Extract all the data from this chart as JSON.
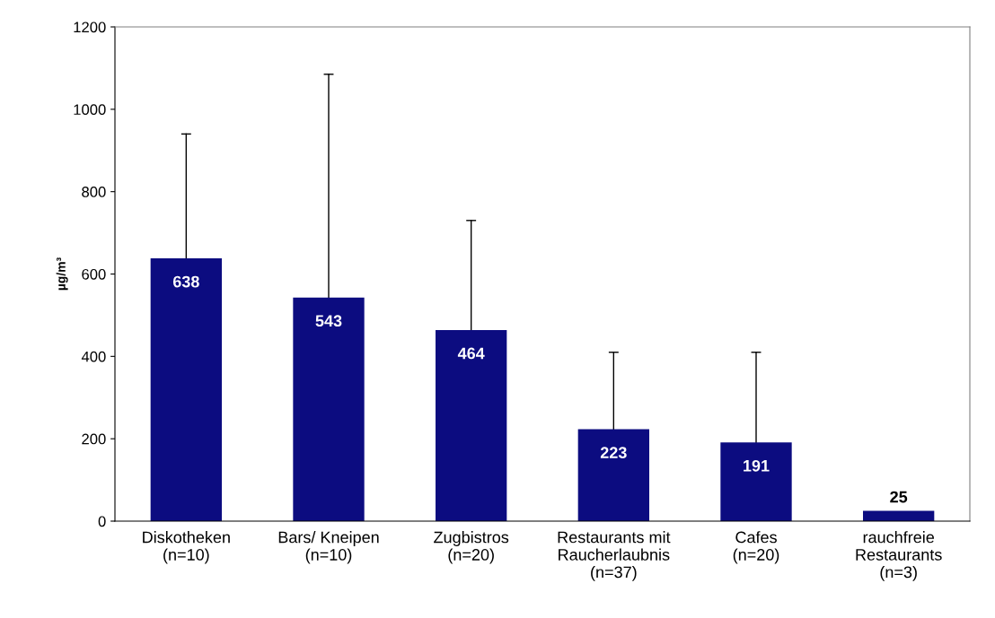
{
  "chart_data": {
    "type": "bar",
    "ylabel": "µg/m³",
    "categories": [
      "Diskotheken\n(n=10)",
      "Bars/ Kneipen\n(n=10)",
      "Zugbistros\n(n=20)",
      "Restaurants mit\nRaucherlaubnis\n(n=37)",
      "Cafes\n(n=20)",
      "rauchfreie\nRestaurants\n(n=3)"
    ],
    "values": [
      638,
      543,
      464,
      223,
      191,
      25
    ],
    "errors": [
      [
        638,
        940
      ],
      [
        543,
        1085
      ],
      [
        464,
        730
      ],
      [
        223,
        410
      ],
      [
        191,
        410
      ],
      null
    ],
    "color": "#0c0c80",
    "data_labels": true,
    "ylim": [
      0,
      1200
    ],
    "yticks": [
      0,
      200,
      400,
      600,
      800,
      1000,
      1200
    ],
    "grid": false
  }
}
